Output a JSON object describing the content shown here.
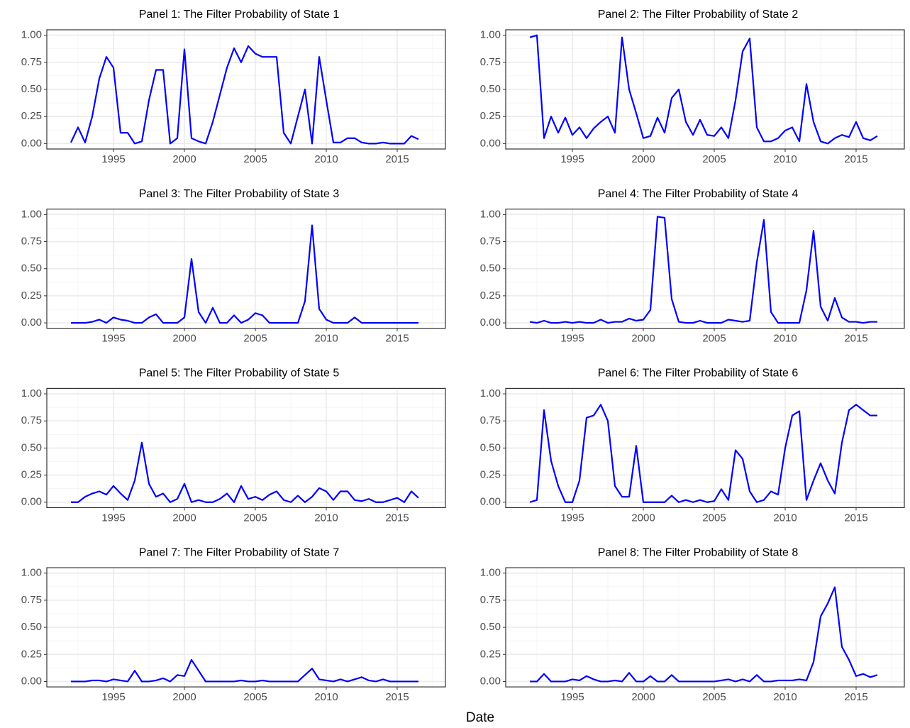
{
  "xlabel": "Date",
  "chart_data": [
    {
      "type": "line",
      "title": "Panel 1: The Filter Probability of State 1",
      "color": "#0000ff",
      "grid": true,
      "xlim": [
        1990.3,
        2018.4
      ],
      "ylim": [
        -0.05,
        1.05
      ],
      "xticks": [
        1995,
        2000,
        2005,
        2010,
        2015
      ],
      "yticks": [
        {
          "value": 0,
          "label": "0.00"
        },
        {
          "value": 0.25,
          "label": "0.25"
        },
        {
          "value": 0.5,
          "label": "0.50"
        },
        {
          "value": 0.75,
          "label": "0.75"
        },
        {
          "value": 1,
          "label": "1.00"
        }
      ],
      "x": [
        1992,
        1992.5,
        1993,
        1993.5,
        1994,
        1994.5,
        1995,
        1995.5,
        1996,
        1996.5,
        1997,
        1997.5,
        1998,
        1998.5,
        1999,
        1999.5,
        2000,
        2000.5,
        2001,
        2001.5,
        2002,
        2002.5,
        2003,
        2003.5,
        2004,
        2004.5,
        2005,
        2005.5,
        2006,
        2006.5,
        2007,
        2007.5,
        2008,
        2008.5,
        2009,
        2009.5,
        2010,
        2010.5,
        2011,
        2011.5,
        2012,
        2012.5,
        2013,
        2013.5,
        2014,
        2014.5,
        2015,
        2015.5,
        2016,
        2016.5
      ],
      "values": [
        0.01,
        0.15,
        0.01,
        0.25,
        0.6,
        0.8,
        0.7,
        0.1,
        0.1,
        0.0,
        0.02,
        0.4,
        0.68,
        0.68,
        0.0,
        0.05,
        0.87,
        0.05,
        0.02,
        0.0,
        0.2,
        0.45,
        0.7,
        0.88,
        0.75,
        0.9,
        0.83,
        0.8,
        0.8,
        0.8,
        0.1,
        0.0,
        0.25,
        0.5,
        0.0,
        0.8,
        0.4,
        0.01,
        0.01,
        0.05,
        0.05,
        0.01,
        0.0,
        0.0,
        0.01,
        0.0,
        0.0,
        0.0,
        0.07,
        0.04
      ]
    },
    {
      "type": "line",
      "title": "Panel 2: The Filter Probability of State 2",
      "color": "#0000ff",
      "grid": true,
      "xlim": [
        1990.3,
        2018.4
      ],
      "ylim": [
        -0.05,
        1.05
      ],
      "xticks": [
        1995,
        2000,
        2005,
        2010,
        2015
      ],
      "yticks": [
        {
          "value": 0,
          "label": "0.00"
        },
        {
          "value": 0.25,
          "label": "0.25"
        },
        {
          "value": 0.5,
          "label": "0.50"
        },
        {
          "value": 0.75,
          "label": "0.75"
        },
        {
          "value": 1,
          "label": "1.00"
        }
      ],
      "x": [
        1992,
        1992.5,
        1993,
        1993.5,
        1994,
        1994.5,
        1995,
        1995.5,
        1996,
        1996.5,
        1997,
        1997.5,
        1998,
        1998.5,
        1999,
        1999.5,
        2000,
        2000.5,
        2001,
        2001.5,
        2002,
        2002.5,
        2003,
        2003.5,
        2004,
        2004.5,
        2005,
        2005.5,
        2006,
        2006.5,
        2007,
        2007.5,
        2008,
        2008.5,
        2009,
        2009.5,
        2010,
        2010.5,
        2011,
        2011.5,
        2012,
        2012.5,
        2013,
        2013.5,
        2014,
        2014.5,
        2015,
        2015.5,
        2016,
        2016.5
      ],
      "values": [
        0.98,
        1.0,
        0.05,
        0.25,
        0.1,
        0.24,
        0.08,
        0.15,
        0.05,
        0.14,
        0.2,
        0.25,
        0.1,
        0.98,
        0.5,
        0.28,
        0.05,
        0.07,
        0.24,
        0.1,
        0.42,
        0.5,
        0.2,
        0.08,
        0.22,
        0.08,
        0.07,
        0.15,
        0.05,
        0.4,
        0.85,
        0.97,
        0.15,
        0.02,
        0.02,
        0.05,
        0.12,
        0.15,
        0.02,
        0.55,
        0.2,
        0.02,
        0.0,
        0.05,
        0.08,
        0.06,
        0.2,
        0.05,
        0.03,
        0.07
      ]
    },
    {
      "type": "line",
      "title": "Panel 3: The Filter Probability of State 3",
      "color": "#0000ff",
      "grid": true,
      "xlim": [
        1990.3,
        2018.4
      ],
      "ylim": [
        -0.05,
        1.05
      ],
      "xticks": [
        1995,
        2000,
        2005,
        2010,
        2015
      ],
      "yticks": [
        {
          "value": 0,
          "label": "0.00"
        },
        {
          "value": 0.25,
          "label": "0.25"
        },
        {
          "value": 0.5,
          "label": "0.50"
        },
        {
          "value": 0.75,
          "label": "0.75"
        },
        {
          "value": 1,
          "label": "1.00"
        }
      ],
      "x": [
        1992,
        1992.5,
        1993,
        1993.5,
        1994,
        1994.5,
        1995,
        1995.5,
        1996,
        1996.5,
        1997,
        1997.5,
        1998,
        1998.5,
        1999,
        1999.5,
        2000,
        2000.5,
        2001,
        2001.5,
        2002,
        2002.5,
        2003,
        2003.5,
        2004,
        2004.5,
        2005,
        2005.5,
        2006,
        2006.5,
        2007,
        2007.5,
        2008,
        2008.5,
        2009,
        2009.5,
        2010,
        2010.5,
        2011,
        2011.5,
        2012,
        2012.5,
        2013,
        2013.5,
        2014,
        2014.5,
        2015,
        2015.5,
        2016,
        2016.5
      ],
      "values": [
        0,
        0,
        0,
        0.01,
        0.03,
        0,
        0.05,
        0.03,
        0.02,
        0,
        0,
        0.05,
        0.08,
        0,
        0,
        0,
        0.05,
        0.59,
        0.1,
        0,
        0.14,
        0,
        0,
        0.07,
        0,
        0.03,
        0.09,
        0.07,
        0,
        0,
        0,
        0,
        0,
        0.2,
        0.9,
        0.13,
        0.03,
        0,
        0,
        0,
        0.05,
        0,
        0,
        0,
        0,
        0,
        0,
        0,
        0,
        0
      ]
    },
    {
      "type": "line",
      "title": "Panel 4: The Filter Probability of State 4",
      "color": "#0000ff",
      "grid": true,
      "xlim": [
        1990.3,
        2018.4
      ],
      "ylim": [
        -0.05,
        1.05
      ],
      "xticks": [
        1995,
        2000,
        2005,
        2010,
        2015
      ],
      "yticks": [
        {
          "value": 0,
          "label": "0.00"
        },
        {
          "value": 0.25,
          "label": "0.25"
        },
        {
          "value": 0.5,
          "label": "0.50"
        },
        {
          "value": 0.75,
          "label": "0.75"
        },
        {
          "value": 1,
          "label": "1.00"
        }
      ],
      "x": [
        1992,
        1992.5,
        1993,
        1993.5,
        1994,
        1994.5,
        1995,
        1995.5,
        1996,
        1996.5,
        1997,
        1997.5,
        1998,
        1998.5,
        1999,
        1999.5,
        2000,
        2000.5,
        2001,
        2001.5,
        2002,
        2002.5,
        2003,
        2003.5,
        2004,
        2004.5,
        2005,
        2005.5,
        2006,
        2006.5,
        2007,
        2007.5,
        2008,
        2008.5,
        2009,
        2009.5,
        2010,
        2010.5,
        2011,
        2011.5,
        2012,
        2012.5,
        2013,
        2013.5,
        2014,
        2014.5,
        2015,
        2015.5,
        2016,
        2016.5
      ],
      "values": [
        0.01,
        0,
        0.02,
        0,
        0,
        0.01,
        0,
        0.01,
        0,
        0,
        0.03,
        0,
        0.01,
        0.01,
        0.04,
        0.02,
        0.03,
        0.12,
        0.98,
        0.97,
        0.22,
        0.01,
        0,
        0,
        0.02,
        0,
        0,
        0,
        0.03,
        0.02,
        0.01,
        0.02,
        0.56,
        0.95,
        0.1,
        0,
        0,
        0,
        0,
        0.3,
        0.85,
        0.15,
        0.02,
        0.23,
        0.05,
        0.01,
        0.01,
        0,
        0.01,
        0.01
      ]
    },
    {
      "type": "line",
      "title": "Panel 5: The Filter Probability of State 5",
      "color": "#0000ff",
      "grid": true,
      "xlim": [
        1990.3,
        2018.4
      ],
      "ylim": [
        -0.05,
        1.05
      ],
      "xticks": [
        1995,
        2000,
        2005,
        2010,
        2015
      ],
      "yticks": [
        {
          "value": 0,
          "label": "0.00"
        },
        {
          "value": 0.25,
          "label": "0.25"
        },
        {
          "value": 0.5,
          "label": "0.50"
        },
        {
          "value": 0.75,
          "label": "0.75"
        },
        {
          "value": 1,
          "label": "1.00"
        }
      ],
      "x": [
        1992,
        1992.5,
        1993,
        1993.5,
        1994,
        1994.5,
        1995,
        1995.5,
        1996,
        1996.5,
        1997,
        1997.5,
        1998,
        1998.5,
        1999,
        1999.5,
        2000,
        2000.5,
        2001,
        2001.5,
        2002,
        2002.5,
        2003,
        2003.5,
        2004,
        2004.5,
        2005,
        2005.5,
        2006,
        2006.5,
        2007,
        2007.5,
        2008,
        2008.5,
        2009,
        2009.5,
        2010,
        2010.5,
        2011,
        2011.5,
        2012,
        2012.5,
        2013,
        2013.5,
        2014,
        2014.5,
        2015,
        2015.5,
        2016,
        2016.5
      ],
      "values": [
        0,
        0,
        0.05,
        0.08,
        0.1,
        0.07,
        0.15,
        0.08,
        0.02,
        0.2,
        0.55,
        0.17,
        0.05,
        0.08,
        0,
        0.03,
        0.17,
        0,
        0.02,
        0,
        0,
        0.03,
        0.08,
        0,
        0.15,
        0.03,
        0.05,
        0.02,
        0.07,
        0.1,
        0.02,
        0,
        0.06,
        0,
        0.05,
        0.13,
        0.1,
        0.02,
        0.1,
        0.1,
        0.02,
        0.01,
        0.03,
        0,
        0,
        0.02,
        0.04,
        0,
        0.1,
        0.04
      ]
    },
    {
      "type": "line",
      "title": "Panel 6: The Filter Probability of State 6",
      "color": "#0000ff",
      "grid": true,
      "xlim": [
        1990.3,
        2018.4
      ],
      "ylim": [
        -0.05,
        1.05
      ],
      "xticks": [
        1995,
        2000,
        2005,
        2010,
        2015
      ],
      "yticks": [
        {
          "value": 0,
          "label": "0.00"
        },
        {
          "value": 0.25,
          "label": "0.25"
        },
        {
          "value": 0.5,
          "label": "0.50"
        },
        {
          "value": 0.75,
          "label": "0.75"
        },
        {
          "value": 1,
          "label": "1.00"
        }
      ],
      "x": [
        1992,
        1992.5,
        1993,
        1993.5,
        1994,
        1994.5,
        1995,
        1995.5,
        1996,
        1996.5,
        1997,
        1997.5,
        1998,
        1998.5,
        1999,
        1999.5,
        2000,
        2000.5,
        2001,
        2001.5,
        2002,
        2002.5,
        2003,
        2003.5,
        2004,
        2004.5,
        2005,
        2005.5,
        2006,
        2006.5,
        2007,
        2007.5,
        2008,
        2008.5,
        2009,
        2009.5,
        2010,
        2010.5,
        2011,
        2011.5,
        2012,
        2012.5,
        2013,
        2013.5,
        2014,
        2014.5,
        2015,
        2015.5,
        2016,
        2016.5
      ],
      "values": [
        0,
        0.02,
        0.85,
        0.38,
        0.15,
        0,
        0,
        0.2,
        0.78,
        0.8,
        0.9,
        0.75,
        0.15,
        0.05,
        0.05,
        0.52,
        0,
        0,
        0,
        0,
        0.06,
        0,
        0.02,
        0,
        0.02,
        0,
        0.01,
        0.12,
        0.02,
        0.48,
        0.4,
        0.1,
        0,
        0.02,
        0.1,
        0.07,
        0.5,
        0.8,
        0.84,
        0.02,
        0.2,
        0.36,
        0.2,
        0.08,
        0.55,
        0.85,
        0.9,
        0.85,
        0.8,
        0.8
      ]
    },
    {
      "type": "line",
      "title": "Panel 7: The Filter Probability of State 7",
      "color": "#0000ff",
      "grid": true,
      "xlim": [
        1990.3,
        2018.4
      ],
      "ylim": [
        -0.05,
        1.05
      ],
      "xticks": [
        1995,
        2000,
        2005,
        2010,
        2015
      ],
      "yticks": [
        {
          "value": 0,
          "label": "0.00"
        },
        {
          "value": 0.25,
          "label": "0.25"
        },
        {
          "value": 0.5,
          "label": "0.50"
        },
        {
          "value": 0.75,
          "label": "0.75"
        },
        {
          "value": 1,
          "label": "1.00"
        }
      ],
      "x": [
        1992,
        1992.5,
        1993,
        1993.5,
        1994,
        1994.5,
        1995,
        1995.5,
        1996,
        1996.5,
        1997,
        1997.5,
        1998,
        1998.5,
        1999,
        1999.5,
        2000,
        2000.5,
        2001,
        2001.5,
        2002,
        2002.5,
        2003,
        2003.5,
        2004,
        2004.5,
        2005,
        2005.5,
        2006,
        2006.5,
        2007,
        2007.5,
        2008,
        2008.5,
        2009,
        2009.5,
        2010,
        2010.5,
        2011,
        2011.5,
        2012,
        2012.5,
        2013,
        2013.5,
        2014,
        2014.5,
        2015,
        2015.5,
        2016,
        2016.5
      ],
      "values": [
        0,
        0,
        0,
        0.01,
        0.01,
        0,
        0.02,
        0.01,
        0,
        0.1,
        0,
        0,
        0.01,
        0.03,
        0,
        0.06,
        0.05,
        0.2,
        0.1,
        0,
        0,
        0,
        0,
        0,
        0.01,
        0,
        0,
        0.01,
        0,
        0,
        0,
        0,
        0,
        0.06,
        0.12,
        0.02,
        0.01,
        0,
        0.02,
        0,
        0.02,
        0.04,
        0.01,
        0,
        0.02,
        0,
        0,
        0,
        0,
        0
      ]
    },
    {
      "type": "line",
      "title": "Panel 8: The Filter Probability of State 8",
      "color": "#0000ff",
      "grid": true,
      "xlim": [
        1990.3,
        2018.4
      ],
      "ylim": [
        -0.05,
        1.05
      ],
      "xticks": [
        1995,
        2000,
        2005,
        2010,
        2015
      ],
      "yticks": [
        {
          "value": 0,
          "label": "0.00"
        },
        {
          "value": 0.25,
          "label": "0.25"
        },
        {
          "value": 0.5,
          "label": "0.50"
        },
        {
          "value": 0.75,
          "label": "0.75"
        },
        {
          "value": 1,
          "label": "1.00"
        }
      ],
      "x": [
        1992,
        1992.5,
        1993,
        1993.5,
        1994,
        1994.5,
        1995,
        1995.5,
        1996,
        1996.5,
        1997,
        1997.5,
        1998,
        1998.5,
        1999,
        1999.5,
        2000,
        2000.5,
        2001,
        2001.5,
        2002,
        2002.5,
        2003,
        2003.5,
        2004,
        2004.5,
        2005,
        2005.5,
        2006,
        2006.5,
        2007,
        2007.5,
        2008,
        2008.5,
        2009,
        2009.5,
        2010,
        2010.5,
        2011,
        2011.5,
        2012,
        2012.5,
        2013,
        2013.5,
        2014,
        2014.5,
        2015,
        2015.5,
        2016,
        2016.5
      ],
      "values": [
        0,
        0,
        0.07,
        0,
        0,
        0,
        0.02,
        0.01,
        0.05,
        0.02,
        0,
        0,
        0.01,
        0,
        0.08,
        0,
        0,
        0.05,
        0,
        0,
        0.06,
        0,
        0,
        0,
        0,
        0,
        0,
        0.01,
        0.02,
        0,
        0.02,
        0,
        0.06,
        0,
        0,
        0.01,
        0.01,
        0.01,
        0.02,
        0.01,
        0.18,
        0.6,
        0.72,
        0.87,
        0.32,
        0.2,
        0.05,
        0.07,
        0.04,
        0.06
      ]
    }
  ]
}
